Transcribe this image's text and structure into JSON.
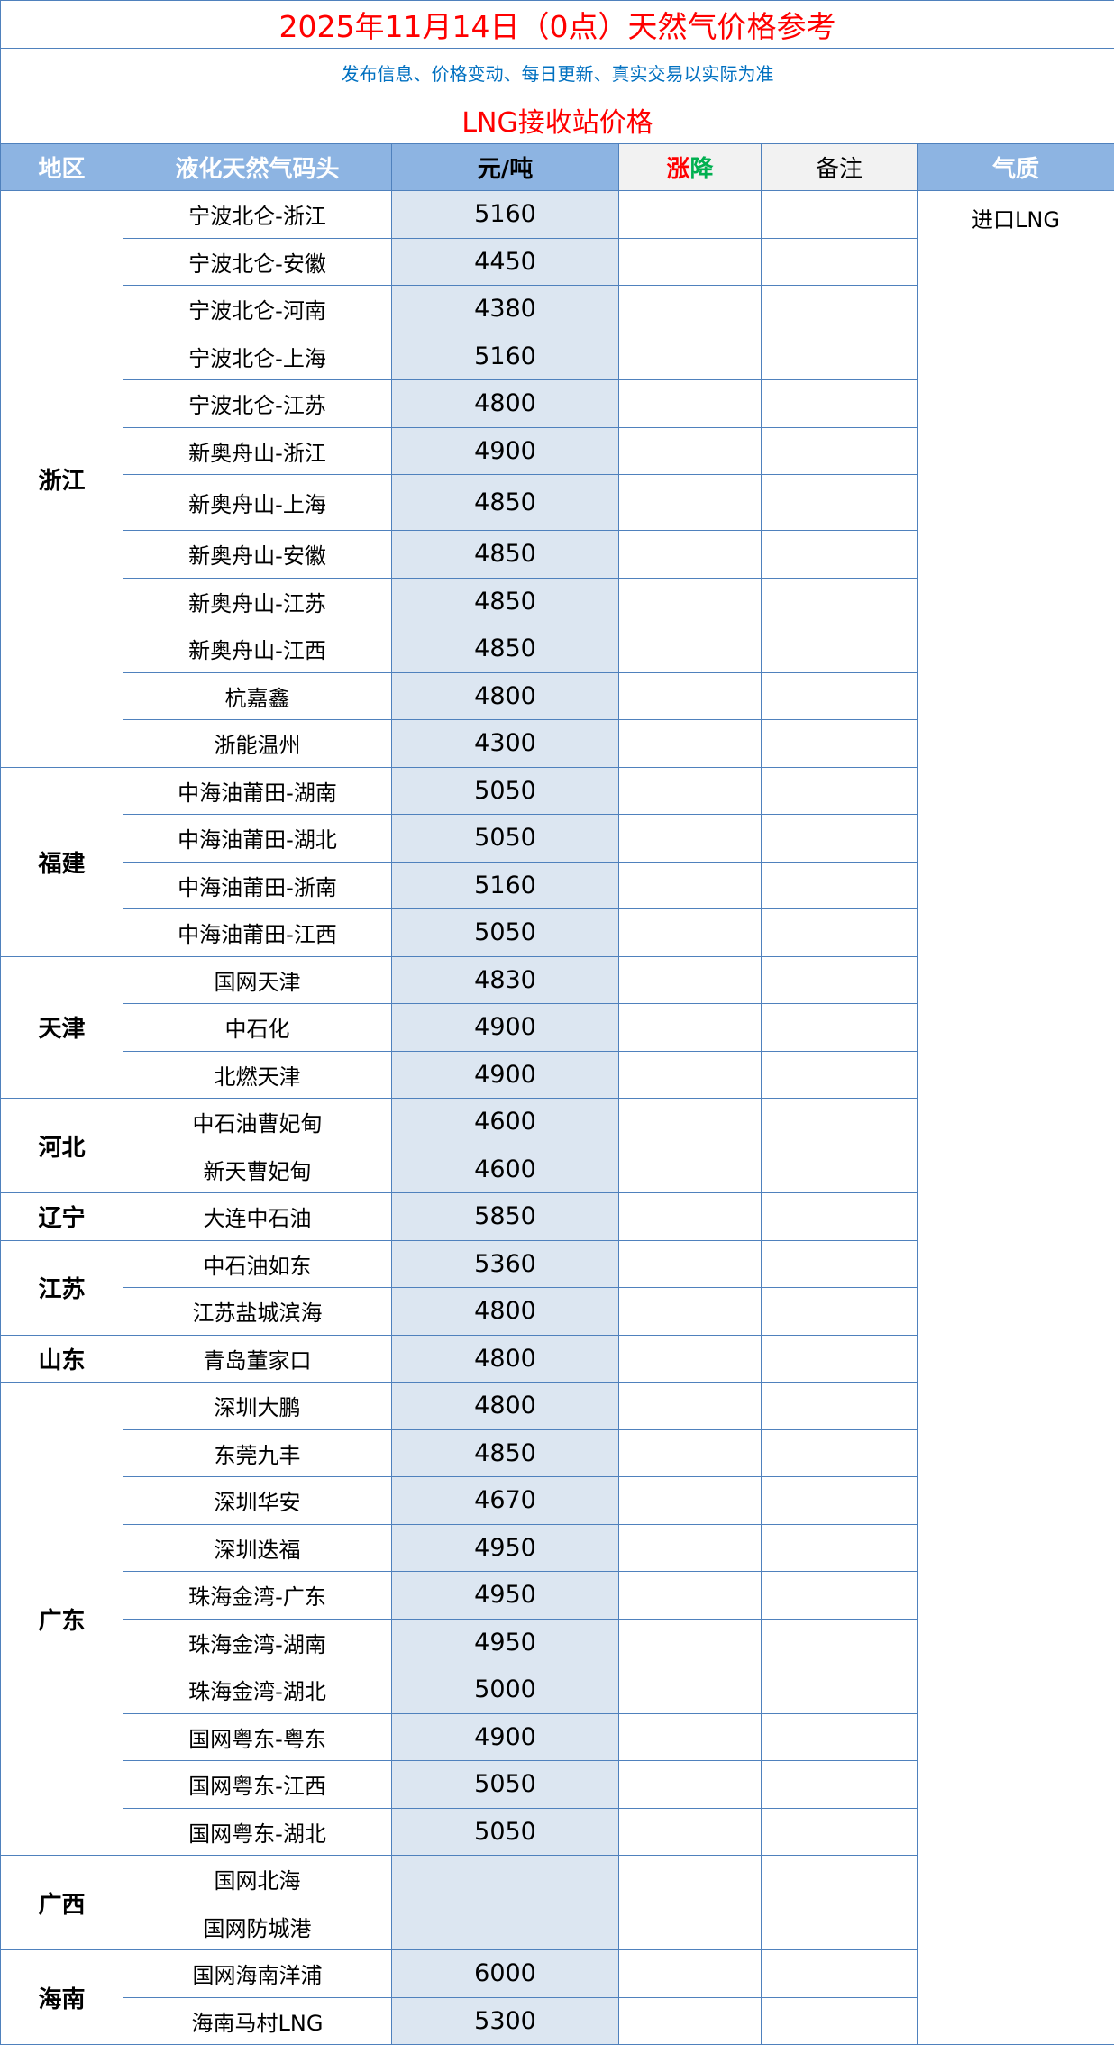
{
  "title": "2025年11月14日（0点）天然气价格参考",
  "subtitle": "发布信息、价格变动、每日更新、真实交易以实际为准",
  "section_title": "LNG接收站价格",
  "colors": {
    "header_bg": "#8db4e2",
    "price_bg": "#dce6f1",
    "title": "#ff0000",
    "subtitle": "#0070c0",
    "rise": "#ff0000",
    "fall": "#00b050"
  },
  "headers": {
    "region": "地区",
    "terminal": "液化天然气码头",
    "price": "元/吨",
    "change_up": "涨",
    "change_down": "降",
    "note": "备注",
    "quality": "气质"
  },
  "quality_value": "进口LNG",
  "regions": [
    {
      "name": "浙江",
      "rows": [
        {
          "terminal": "宁波北仑-浙江",
          "price": "5160"
        },
        {
          "terminal": "宁波北仑-安徽",
          "price": "4450"
        },
        {
          "terminal": "宁波北仑-河南",
          "price": "4380"
        },
        {
          "terminal": "宁波北仑-上海",
          "price": "5160"
        },
        {
          "terminal": "宁波北仑-江苏",
          "price": "4800"
        },
        {
          "terminal": "新奥舟山-浙江",
          "price": "4900"
        },
        {
          "terminal": "新奥舟山-上海",
          "price": "4850"
        },
        {
          "terminal": "新奥舟山-安徽",
          "price": "4850"
        },
        {
          "terminal": "新奥舟山-江苏",
          "price": "4850"
        },
        {
          "terminal": "新奥舟山-江西",
          "price": "4850"
        },
        {
          "terminal": "杭嘉鑫",
          "price": "4800"
        },
        {
          "terminal": "浙能温州",
          "price": "4300"
        }
      ]
    },
    {
      "name": "福建",
      "rows": [
        {
          "terminal": "中海油莆田-湖南",
          "price": "5050"
        },
        {
          "terminal": "中海油莆田-湖北",
          "price": "5050"
        },
        {
          "terminal": "中海油莆田-浙南",
          "price": "5160"
        },
        {
          "terminal": "中海油莆田-江西",
          "price": "5050"
        }
      ]
    },
    {
      "name": "天津",
      "rows": [
        {
          "terminal": "国网天津",
          "price": "4830"
        },
        {
          "terminal": "中石化",
          "price": "4900"
        },
        {
          "terminal": "北燃天津",
          "price": "4900"
        }
      ]
    },
    {
      "name": "河北",
      "rows": [
        {
          "terminal": "中石油曹妃甸",
          "price": "4600"
        },
        {
          "terminal": "新天曹妃甸",
          "price": "4600"
        }
      ]
    },
    {
      "name": "辽宁",
      "rows": [
        {
          "terminal": "大连中石油",
          "price": "5850"
        }
      ]
    },
    {
      "name": "江苏",
      "rows": [
        {
          "terminal": "中石油如东",
          "price": "5360"
        },
        {
          "terminal": "江苏盐城滨海",
          "price": "4800"
        }
      ]
    },
    {
      "name": "山东",
      "rows": [
        {
          "terminal": "青岛董家口",
          "price": "4800"
        }
      ]
    },
    {
      "name": "广东",
      "rows": [
        {
          "terminal": "深圳大鹏",
          "price": "4800"
        },
        {
          "terminal": "东莞九丰",
          "price": "4850"
        },
        {
          "terminal": "深圳华安",
          "price": "4670"
        },
        {
          "terminal": "深圳迭福",
          "price": "4950"
        },
        {
          "terminal": "珠海金湾-广东",
          "price": "4950"
        },
        {
          "terminal": "珠海金湾-湖南",
          "price": "4950"
        },
        {
          "terminal": "珠海金湾-湖北",
          "price": "5000"
        },
        {
          "terminal": "国网粤东-粤东",
          "price": "4900"
        },
        {
          "terminal": "国网粤东-江西",
          "price": "5050"
        },
        {
          "terminal": "国网粤东-湖北",
          "price": "5050"
        }
      ]
    },
    {
      "name": "广西",
      "rows": [
        {
          "terminal": "国网北海",
          "price": ""
        },
        {
          "terminal": "国网防城港",
          "price": ""
        }
      ]
    },
    {
      "name": "海南",
      "rows": [
        {
          "terminal": "国网海南洋浦",
          "price": "6000"
        },
        {
          "terminal": "海南马村LNG",
          "price": "5300"
        }
      ]
    }
  ]
}
